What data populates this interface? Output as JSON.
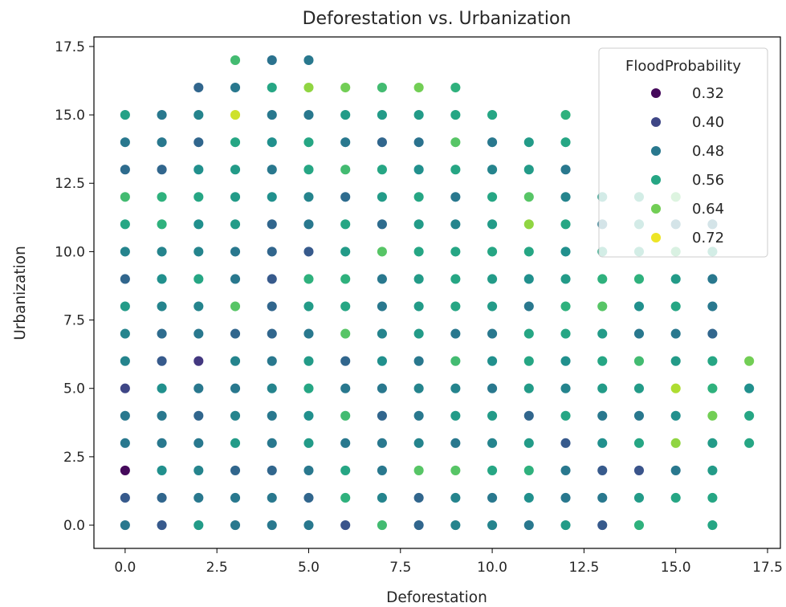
{
  "chart_data": {
    "type": "scatter",
    "title": "Deforestation vs. Urbanization",
    "xlabel": "Deforestation",
    "ylabel": "Urbanization",
    "xlim": [
      -0.85,
      17.85
    ],
    "ylim": [
      -0.85,
      17.85
    ],
    "xticks": [
      0.0,
      2.5,
      5.0,
      7.5,
      10.0,
      12.5,
      15.0,
      17.5
    ],
    "yticks": [
      0.0,
      2.5,
      5.0,
      7.5,
      10.0,
      12.5,
      15.0,
      17.5
    ],
    "xtick_labels": [
      "0.0",
      "2.5",
      "5.0",
      "7.5",
      "10.0",
      "12.5",
      "15.0",
      "17.5"
    ],
    "ytick_labels": [
      "0.0",
      "2.5",
      "5.0",
      "7.5",
      "10.0",
      "12.5",
      "15.0",
      "17.5"
    ],
    "hue": "FloodProbability",
    "colormap": "viridis",
    "legend": {
      "title": "FloodProbability",
      "placement": "top-right",
      "entries": [
        {
          "label": "0.32",
          "value": 0.32
        },
        {
          "label": "0.40",
          "value": 0.4
        },
        {
          "label": "0.48",
          "value": 0.48
        },
        {
          "label": "0.56",
          "value": 0.56
        },
        {
          "label": "0.64",
          "value": 0.64
        },
        {
          "label": "0.72",
          "value": 0.72
        }
      ]
    },
    "hue_range": [
      0.31,
      0.73
    ],
    "points": [
      [
        0,
        0,
        0.48
      ],
      [
        0,
        1,
        0.43
      ],
      [
        0,
        2,
        0.32
      ],
      [
        0,
        3,
        0.48
      ],
      [
        0,
        4,
        0.48
      ],
      [
        0,
        5,
        0.4
      ],
      [
        0,
        6,
        0.5
      ],
      [
        0,
        7,
        0.5
      ],
      [
        0,
        8,
        0.54
      ],
      [
        0,
        9,
        0.45
      ],
      [
        0,
        10,
        0.5
      ],
      [
        0,
        11,
        0.56
      ],
      [
        0,
        12,
        0.6
      ],
      [
        0,
        13,
        0.46
      ],
      [
        0,
        14,
        0.48
      ],
      [
        0,
        15,
        0.55
      ],
      [
        1,
        0,
        0.43
      ],
      [
        1,
        1,
        0.45
      ],
      [
        1,
        2,
        0.52
      ],
      [
        1,
        3,
        0.48
      ],
      [
        1,
        4,
        0.48
      ],
      [
        1,
        5,
        0.52
      ],
      [
        1,
        6,
        0.43
      ],
      [
        1,
        7,
        0.46
      ],
      [
        1,
        8,
        0.5
      ],
      [
        1,
        9,
        0.52
      ],
      [
        1,
        10,
        0.5
      ],
      [
        1,
        11,
        0.58
      ],
      [
        1,
        12,
        0.58
      ],
      [
        1,
        13,
        0.45
      ],
      [
        1,
        14,
        0.48
      ],
      [
        1,
        15,
        0.48
      ],
      [
        2,
        0,
        0.54
      ],
      [
        2,
        1,
        0.48
      ],
      [
        2,
        2,
        0.5
      ],
      [
        2,
        3,
        0.48
      ],
      [
        2,
        4,
        0.45
      ],
      [
        2,
        5,
        0.48
      ],
      [
        2,
        6,
        0.38
      ],
      [
        2,
        7,
        0.48
      ],
      [
        2,
        8,
        0.5
      ],
      [
        2,
        9,
        0.56
      ],
      [
        2,
        10,
        0.5
      ],
      [
        2,
        11,
        0.52
      ],
      [
        2,
        12,
        0.56
      ],
      [
        2,
        13,
        0.52
      ],
      [
        2,
        14,
        0.45
      ],
      [
        2,
        15,
        0.5
      ],
      [
        2,
        16,
        0.45
      ],
      [
        3,
        0,
        0.48
      ],
      [
        3,
        1,
        0.48
      ],
      [
        3,
        2,
        0.45
      ],
      [
        3,
        3,
        0.54
      ],
      [
        3,
        4,
        0.5
      ],
      [
        3,
        5,
        0.48
      ],
      [
        3,
        6,
        0.5
      ],
      [
        3,
        7,
        0.45
      ],
      [
        3,
        8,
        0.62
      ],
      [
        3,
        9,
        0.48
      ],
      [
        3,
        10,
        0.48
      ],
      [
        3,
        11,
        0.54
      ],
      [
        3,
        12,
        0.54
      ],
      [
        3,
        13,
        0.54
      ],
      [
        3,
        14,
        0.56
      ],
      [
        3,
        15,
        0.7
      ],
      [
        3,
        16,
        0.48
      ],
      [
        3,
        17,
        0.6
      ],
      [
        4,
        0,
        0.48
      ],
      [
        4,
        1,
        0.48
      ],
      [
        4,
        2,
        0.45
      ],
      [
        4,
        3,
        0.48
      ],
      [
        4,
        4,
        0.48
      ],
      [
        4,
        5,
        0.5
      ],
      [
        4,
        6,
        0.48
      ],
      [
        4,
        7,
        0.45
      ],
      [
        4,
        8,
        0.45
      ],
      [
        4,
        9,
        0.43
      ],
      [
        4,
        10,
        0.45
      ],
      [
        4,
        11,
        0.45
      ],
      [
        4,
        12,
        0.52
      ],
      [
        4,
        13,
        0.48
      ],
      [
        4,
        14,
        0.52
      ],
      [
        4,
        15,
        0.48
      ],
      [
        4,
        16,
        0.56
      ],
      [
        4,
        17,
        0.47
      ],
      [
        5,
        0,
        0.48
      ],
      [
        5,
        1,
        0.45
      ],
      [
        5,
        2,
        0.48
      ],
      [
        5,
        3,
        0.54
      ],
      [
        5,
        4,
        0.52
      ],
      [
        5,
        5,
        0.56
      ],
      [
        5,
        6,
        0.54
      ],
      [
        5,
        7,
        0.48
      ],
      [
        5,
        8,
        0.54
      ],
      [
        5,
        9,
        0.58
      ],
      [
        5,
        10,
        0.43
      ],
      [
        5,
        11,
        0.48
      ],
      [
        5,
        12,
        0.5
      ],
      [
        5,
        13,
        0.56
      ],
      [
        5,
        14,
        0.56
      ],
      [
        5,
        15,
        0.48
      ],
      [
        5,
        16,
        0.66
      ],
      [
        5,
        17,
        0.48
      ],
      [
        6,
        0,
        0.42
      ],
      [
        6,
        1,
        0.58
      ],
      [
        6,
        2,
        0.56
      ],
      [
        6,
        3,
        0.48
      ],
      [
        6,
        4,
        0.6
      ],
      [
        6,
        5,
        0.48
      ],
      [
        6,
        6,
        0.45
      ],
      [
        6,
        7,
        0.62
      ],
      [
        6,
        8,
        0.56
      ],
      [
        6,
        9,
        0.58
      ],
      [
        6,
        10,
        0.54
      ],
      [
        6,
        11,
        0.56
      ],
      [
        6,
        12,
        0.46
      ],
      [
        6,
        13,
        0.6
      ],
      [
        6,
        14,
        0.48
      ],
      [
        6,
        15,
        0.54
      ],
      [
        6,
        16,
        0.64
      ],
      [
        7,
        0,
        0.6
      ],
      [
        7,
        1,
        0.5
      ],
      [
        7,
        2,
        0.48
      ],
      [
        7,
        3,
        0.48
      ],
      [
        7,
        4,
        0.45
      ],
      [
        7,
        5,
        0.48
      ],
      [
        7,
        6,
        0.52
      ],
      [
        7,
        7,
        0.5
      ],
      [
        7,
        8,
        0.48
      ],
      [
        7,
        9,
        0.48
      ],
      [
        7,
        10,
        0.62
      ],
      [
        7,
        11,
        0.46
      ],
      [
        7,
        12,
        0.54
      ],
      [
        7,
        13,
        0.56
      ],
      [
        7,
        14,
        0.45
      ],
      [
        7,
        15,
        0.54
      ],
      [
        7,
        16,
        0.6
      ],
      [
        8,
        0,
        0.45
      ],
      [
        8,
        1,
        0.45
      ],
      [
        8,
        2,
        0.62
      ],
      [
        8,
        3,
        0.5
      ],
      [
        8,
        4,
        0.48
      ],
      [
        8,
        5,
        0.5
      ],
      [
        8,
        6,
        0.48
      ],
      [
        8,
        7,
        0.54
      ],
      [
        8,
        8,
        0.54
      ],
      [
        8,
        9,
        0.54
      ],
      [
        8,
        10,
        0.56
      ],
      [
        8,
        11,
        0.54
      ],
      [
        8,
        12,
        0.56
      ],
      [
        8,
        13,
        0.52
      ],
      [
        8,
        14,
        0.47
      ],
      [
        8,
        15,
        0.54
      ],
      [
        8,
        16,
        0.64
      ],
      [
        9,
        0,
        0.5
      ],
      [
        9,
        1,
        0.5
      ],
      [
        9,
        2,
        0.62
      ],
      [
        9,
        3,
        0.48
      ],
      [
        9,
        4,
        0.54
      ],
      [
        9,
        5,
        0.5
      ],
      [
        9,
        6,
        0.6
      ],
      [
        9,
        7,
        0.48
      ],
      [
        9,
        8,
        0.56
      ],
      [
        9,
        9,
        0.56
      ],
      [
        9,
        10,
        0.56
      ],
      [
        9,
        11,
        0.5
      ],
      [
        9,
        12,
        0.48
      ],
      [
        9,
        13,
        0.56
      ],
      [
        9,
        14,
        0.62
      ],
      [
        9,
        15,
        0.56
      ],
      [
        9,
        16,
        0.58
      ],
      [
        10,
        0,
        0.5
      ],
      [
        10,
        1,
        0.48
      ],
      [
        10,
        2,
        0.56
      ],
      [
        10,
        3,
        0.5
      ],
      [
        10,
        4,
        0.54
      ],
      [
        10,
        5,
        0.48
      ],
      [
        10,
        6,
        0.52
      ],
      [
        10,
        7,
        0.48
      ],
      [
        10,
        8,
        0.54
      ],
      [
        10,
        9,
        0.54
      ],
      [
        10,
        10,
        0.56
      ],
      [
        10,
        11,
        0.54
      ],
      [
        10,
        12,
        0.56
      ],
      [
        10,
        13,
        0.5
      ],
      [
        10,
        14,
        0.48
      ],
      [
        10,
        15,
        0.56
      ],
      [
        11,
        0,
        0.48
      ],
      [
        11,
        1,
        0.52
      ],
      [
        11,
        2,
        0.58
      ],
      [
        11,
        3,
        0.54
      ],
      [
        11,
        4,
        0.45
      ],
      [
        11,
        5,
        0.54
      ],
      [
        11,
        6,
        0.56
      ],
      [
        11,
        7,
        0.56
      ],
      [
        11,
        8,
        0.48
      ],
      [
        11,
        9,
        0.52
      ],
      [
        11,
        10,
        0.56
      ],
      [
        11,
        11,
        0.66
      ],
      [
        11,
        12,
        0.62
      ],
      [
        11,
        13,
        0.54
      ],
      [
        11,
        14,
        0.54
      ],
      [
        12,
        0,
        0.54
      ],
      [
        12,
        1,
        0.48
      ],
      [
        12,
        2,
        0.48
      ],
      [
        12,
        3,
        0.43
      ],
      [
        12,
        4,
        0.56
      ],
      [
        12,
        5,
        0.5
      ],
      [
        12,
        6,
        0.52
      ],
      [
        12,
        7,
        0.56
      ],
      [
        12,
        8,
        0.58
      ],
      [
        12,
        9,
        0.54
      ],
      [
        12,
        10,
        0.52
      ],
      [
        12,
        11,
        0.56
      ],
      [
        12,
        12,
        0.5
      ],
      [
        12,
        13,
        0.48
      ],
      [
        12,
        14,
        0.56
      ],
      [
        12,
        15,
        0.58
      ],
      [
        13,
        0,
        0.43
      ],
      [
        13,
        1,
        0.48
      ],
      [
        13,
        2,
        0.43
      ],
      [
        13,
        3,
        0.52
      ],
      [
        13,
        4,
        0.48
      ],
      [
        13,
        5,
        0.54
      ],
      [
        13,
        6,
        0.56
      ],
      [
        13,
        7,
        0.54
      ],
      [
        13,
        8,
        0.62
      ],
      [
        13,
        9,
        0.58
      ],
      [
        13,
        10,
        0.56
      ],
      [
        13,
        11,
        0.48
      ],
      [
        13,
        12,
        0.54
      ],
      [
        14,
        0,
        0.58
      ],
      [
        14,
        1,
        0.54
      ],
      [
        14,
        2,
        0.42
      ],
      [
        14,
        3,
        0.56
      ],
      [
        14,
        4,
        0.48
      ],
      [
        14,
        5,
        0.54
      ],
      [
        14,
        6,
        0.6
      ],
      [
        14,
        7,
        0.48
      ],
      [
        14,
        8,
        0.52
      ],
      [
        14,
        9,
        0.58
      ],
      [
        14,
        10,
        0.56
      ],
      [
        14,
        11,
        0.54
      ],
      [
        14,
        12,
        0.56
      ],
      [
        15,
        1,
        0.56
      ],
      [
        15,
        2,
        0.48
      ],
      [
        15,
        3,
        0.66
      ],
      [
        15,
        4,
        0.52
      ],
      [
        15,
        5,
        0.68
      ],
      [
        15,
        6,
        0.54
      ],
      [
        15,
        7,
        0.48
      ],
      [
        15,
        8,
        0.56
      ],
      [
        15,
        9,
        0.54
      ],
      [
        15,
        10,
        0.6
      ],
      [
        15,
        11,
        0.48
      ],
      [
        15,
        12,
        0.62
      ],
      [
        16,
        0,
        0.56
      ],
      [
        16,
        1,
        0.56
      ],
      [
        16,
        2,
        0.54
      ],
      [
        16,
        3,
        0.54
      ],
      [
        16,
        4,
        0.64
      ],
      [
        16,
        5,
        0.58
      ],
      [
        16,
        6,
        0.56
      ],
      [
        16,
        7,
        0.45
      ],
      [
        16,
        8,
        0.48
      ],
      [
        16,
        9,
        0.48
      ],
      [
        16,
        10,
        0.56
      ],
      [
        16,
        11,
        0.48
      ],
      [
        17,
        3,
        0.56
      ],
      [
        17,
        4,
        0.56
      ],
      [
        17,
        5,
        0.52
      ],
      [
        17,
        6,
        0.64
      ]
    ]
  }
}
